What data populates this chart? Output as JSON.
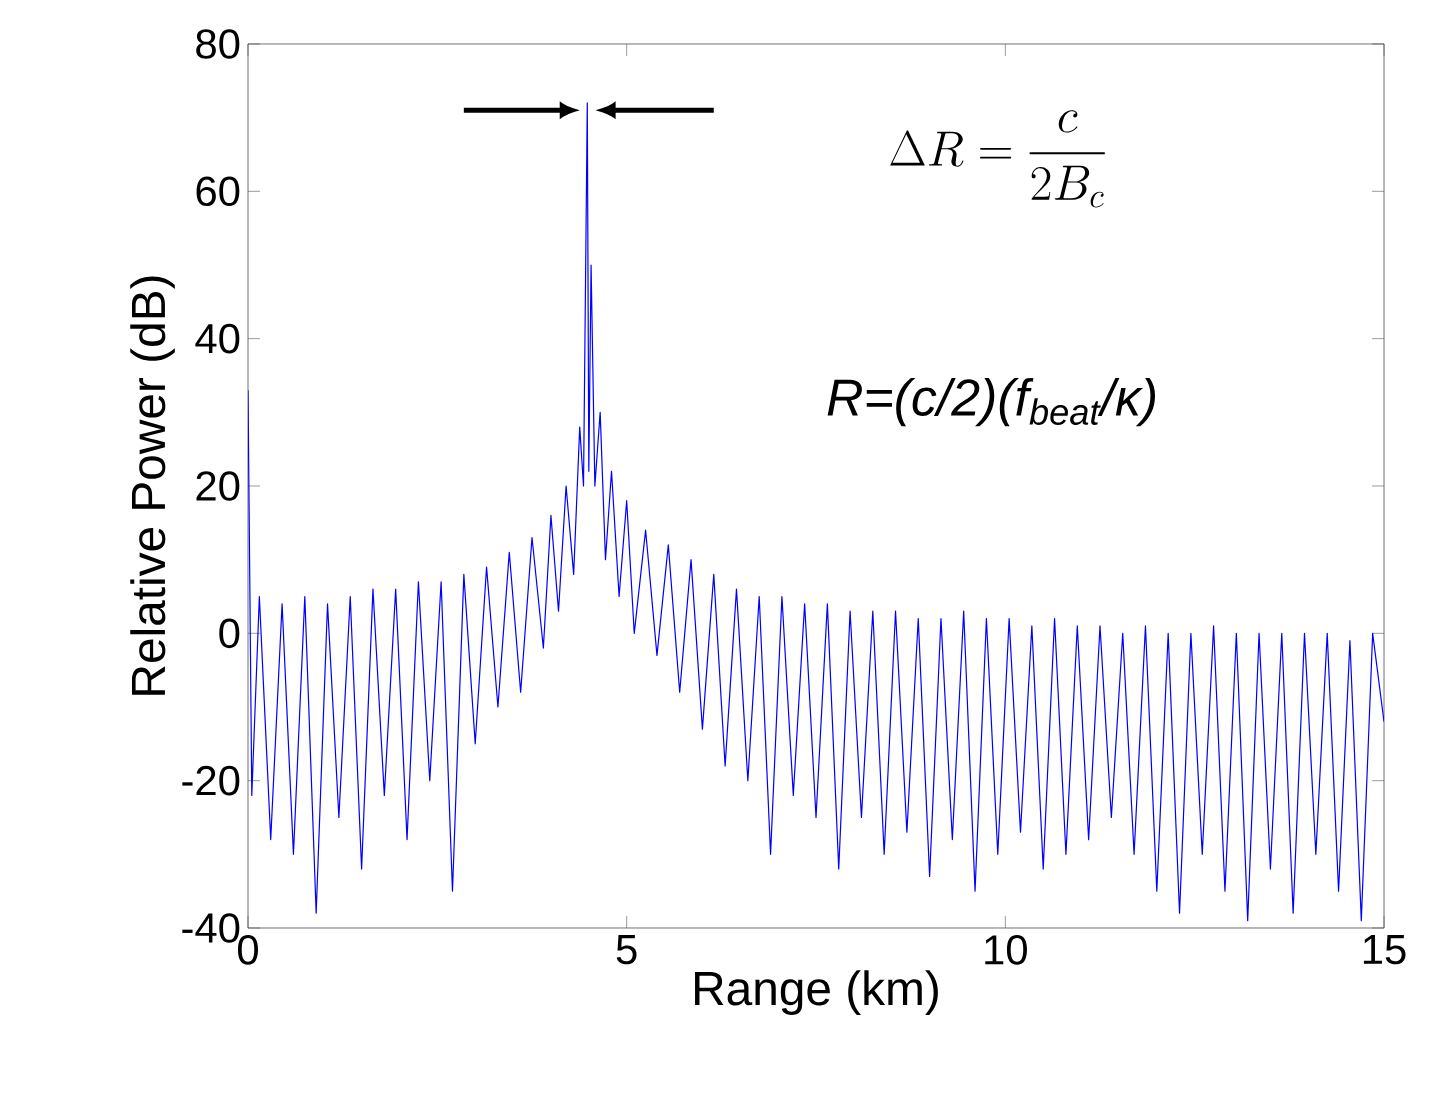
{
  "chart_data": {
    "type": "line",
    "xlabel": "Range (km)",
    "ylabel": "Relative Power (dB)",
    "xlim": [
      0,
      15
    ],
    "ylim": [
      -40,
      80
    ],
    "xticks": [
      0,
      5,
      10,
      15
    ],
    "yticks": [
      -40,
      -20,
      0,
      20,
      40,
      60,
      80
    ],
    "grid": false,
    "annotations": [
      "\\Delta R=\\frac{c}{2B_c}",
      "R=(c/2)(f$_{beat}$/κ)"
    ],
    "series": [
      {
        "color": "#0000ff",
        "x": [
          0,
          0.05,
          0.15,
          0.3,
          0.45,
          0.6,
          0.75,
          0.9,
          1.05,
          1.2,
          1.35,
          1.5,
          1.65,
          1.8,
          1.95,
          2.1,
          2.25,
          2.4,
          2.55,
          2.7,
          2.85,
          3.0,
          3.15,
          3.3,
          3.45,
          3.6,
          3.75,
          3.9,
          4.0,
          4.1,
          4.2,
          4.3,
          4.38,
          4.43,
          4.48,
          4.5,
          4.53,
          4.58,
          4.65,
          4.72,
          4.8,
          4.9,
          5.0,
          5.1,
          5.25,
          5.4,
          5.55,
          5.7,
          5.85,
          6.0,
          6.15,
          6.3,
          6.45,
          6.6,
          6.75,
          6.9,
          7.05,
          7.2,
          7.35,
          7.5,
          7.65,
          7.8,
          7.95,
          8.1,
          8.25,
          8.4,
          8.55,
          8.7,
          8.85,
          9.0,
          9.15,
          9.3,
          9.45,
          9.6,
          9.75,
          9.9,
          10.05,
          10.2,
          10.35,
          10.5,
          10.65,
          10.8,
          10.95,
          11.1,
          11.25,
          11.4,
          11.55,
          11.7,
          11.85,
          12.0,
          12.15,
          12.3,
          12.45,
          12.6,
          12.75,
          12.9,
          13.05,
          13.2,
          13.35,
          13.5,
          13.65,
          13.8,
          13.95,
          14.1,
          14.25,
          14.4,
          14.55,
          14.7,
          14.85,
          15.0
        ],
        "values": [
          33,
          -22,
          5,
          -28,
          4,
          -30,
          5,
          -38,
          4,
          -25,
          5,
          -32,
          6,
          -22,
          6,
          -28,
          7,
          -20,
          7,
          -35,
          8,
          -15,
          9,
          -10,
          11,
          -8,
          13,
          -2,
          16,
          3,
          20,
          8,
          28,
          20,
          72,
          22,
          50,
          20,
          30,
          10,
          22,
          5,
          18,
          0,
          14,
          -3,
          12,
          -8,
          10,
          -13,
          8,
          -18,
          6,
          -20,
          5,
          -30,
          5,
          -22,
          4,
          -25,
          4,
          -32,
          3,
          -25,
          3,
          -30,
          3,
          -27,
          2,
          -33,
          2,
          -28,
          3,
          -35,
          2,
          -30,
          2,
          -27,
          1,
          -32,
          2,
          -30,
          1,
          -28,
          1,
          -25,
          0,
          -30,
          1,
          -35,
          0,
          -38,
          0,
          -30,
          1,
          -35,
          0,
          -39,
          0,
          -32,
          0,
          -38,
          0,
          -30,
          0,
          -35,
          -1,
          -39,
          0,
          -12
        ]
      }
    ]
  }
}
